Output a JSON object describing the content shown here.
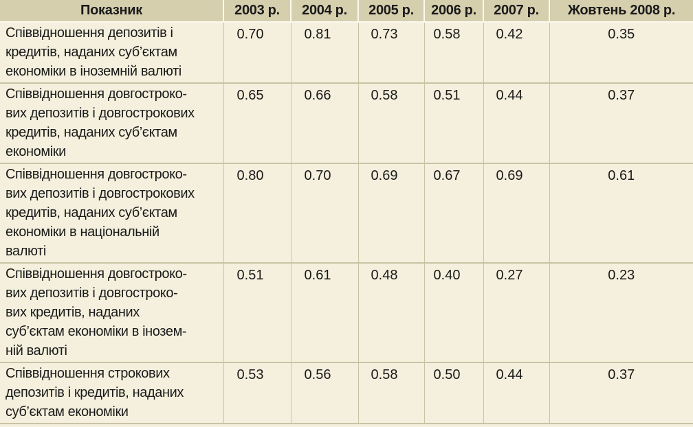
{
  "table": {
    "columns": [
      "Показник",
      "2003 р.",
      "2004 р.",
      "2005 р.",
      "2006 р.",
      "2007 р.",
      "Жовтень 2008 р."
    ],
    "rows": [
      {
        "label_lines": [
          "Співвідношення депозитів і",
          "кредитів, наданих суб’єктам",
          "економіки в іноземній валюті"
        ],
        "values": [
          "0.70",
          "0.81",
          "0.73",
          "0.58",
          "0.42",
          "0.35"
        ]
      },
      {
        "label_lines": [
          "Співвідношення довгостроко-",
          "вих депозитів і довгострокових",
          "кредитів, наданих суб’єктам",
          "економіки"
        ],
        "values": [
          "0.65",
          "0.66",
          "0.58",
          "0.51",
          "0.44",
          "0.37"
        ]
      },
      {
        "label_lines": [
          "Співвідношення довгостроко-",
          "вих депозитів і довгострокових",
          "кредитів, наданих суб’єктам",
          "економіки в національній",
          "валюті"
        ],
        "values": [
          "0.80",
          "0.70",
          "0.69",
          "0.67",
          "0.69",
          "0.61"
        ]
      },
      {
        "label_lines": [
          "Співвідношення довгостроко-",
          "вих депозитів і довгостроко-",
          "вих кредитів, наданих",
          "суб’єктам економіки в інозем-",
          "ній валюті"
        ],
        "values": [
          "0.51",
          "0.61",
          "0.48",
          "0.40",
          "0.27",
          "0.23"
        ]
      },
      {
        "label_lines": [
          "Співвідношення строкових",
          "депозитів і кредитів, наданих",
          " суб’єктам економіки"
        ],
        "values": [
          "0.53",
          "0.56",
          "0.58",
          "0.50",
          "0.44",
          "0.37"
        ]
      }
    ]
  }
}
